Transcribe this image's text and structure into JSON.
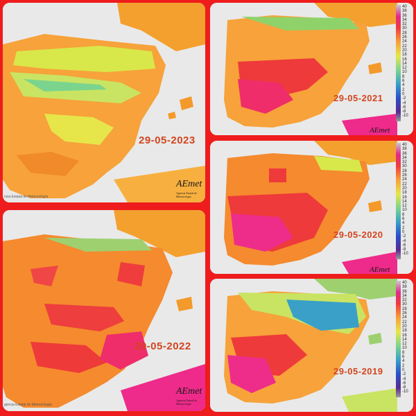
{
  "maps": [
    {
      "date": "29-05-2023",
      "credit": "ncia Estatal de Meteorología",
      "logo": "AEmet",
      "logo_sub": "Agencia Estatal de Meteorología",
      "palette": "cool"
    },
    {
      "date": "29-05-2022",
      "credit": "gencia Estatal de Meteorología",
      "logo": "AEmet",
      "logo_sub": "Agencia Estatal de Meteorología",
      "palette": "hot"
    },
    {
      "date": "29-05-2021",
      "logo": "AEmet",
      "palette": "hot"
    },
    {
      "date": "29-05-2020",
      "logo": "AEmet",
      "palette": "veryhot"
    },
    {
      "date": "29-05-2019",
      "palette": "mixed"
    }
  ],
  "scale_ticks": [
    "40",
    "38",
    "36",
    "34",
    "32",
    "30",
    "28",
    "26",
    "24",
    "22",
    "20",
    "18",
    "16",
    "14",
    "12",
    "10",
    "8",
    "6",
    "4",
    "2",
    "0",
    "-2",
    "-4",
    "-6",
    "-8",
    "-10"
  ],
  "colors": {
    "frame": "#ee1c1c",
    "date_text": "#d2451e",
    "sea": "#efefef",
    "land_orange": "#f7a23a",
    "hot_red": "#f03c3c",
    "very_hot_magenta": "#ee2a8a",
    "mild_yellow": "#e6e64a",
    "cool_green": "#7ad48e",
    "cold_blue": "#3aa0c8"
  }
}
